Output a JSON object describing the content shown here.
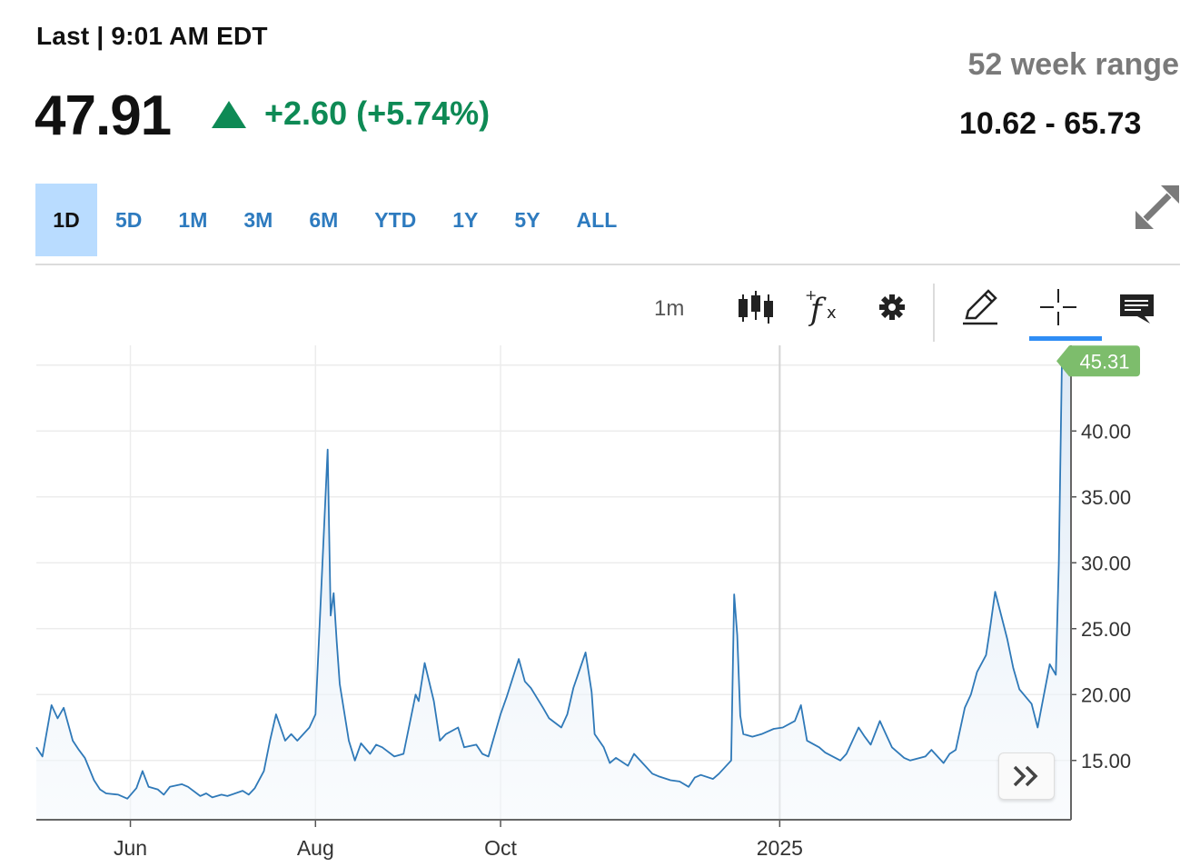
{
  "quote": {
    "last_label": "Last | 9:01 AM EDT",
    "price": "47.91",
    "change": "+2.60 (+5.74%)",
    "change_color": "#0e8a55",
    "range_label": "52 week range",
    "range_value": "10.62 - 65.73"
  },
  "tabs": [
    "1D",
    "5D",
    "1M",
    "3M",
    "6M",
    "YTD",
    "1Y",
    "5Y",
    "ALL"
  ],
  "active_tab": "1D",
  "toolbar": {
    "interval": "1m",
    "icons": [
      "candlestick-icon",
      "function-icon",
      "settings-gear-icon",
      "pencil-draw-icon",
      "crosshair-icon",
      "comment-icon"
    ],
    "active_tool": "crosshair-icon"
  },
  "colors": {
    "line": "#2f79b8",
    "fill": "#dbe8f5",
    "last_price_badge": "#7dbd6c",
    "accent": "#2f8df5"
  },
  "chart_data": {
    "type": "area",
    "x_tick_labels": [
      "Jun",
      "Aug",
      "Oct",
      "2025"
    ],
    "y_tick_labels": [
      "15.00",
      "20.00",
      "25.00",
      "30.00",
      "35.00",
      "40.00"
    ],
    "y_ticks": [
      15,
      20,
      25,
      30,
      35,
      40
    ],
    "ylim": [
      10.5,
      46.5
    ],
    "last_value": 45.31,
    "last_label": "45.31",
    "grid": true,
    "x": [
      "2024-05-01",
      "2024-05-03",
      "2024-05-06",
      "2024-05-08",
      "2024-05-10",
      "2024-05-13",
      "2024-05-15",
      "2024-05-17",
      "2024-05-20",
      "2024-05-22",
      "2024-05-24",
      "2024-05-28",
      "2024-05-31",
      "2024-06-03",
      "2024-06-05",
      "2024-06-07",
      "2024-06-10",
      "2024-06-12",
      "2024-06-14",
      "2024-06-18",
      "2024-06-20",
      "2024-06-24",
      "2024-06-26",
      "2024-06-28",
      "2024-07-01",
      "2024-07-03",
      "2024-07-08",
      "2024-07-10",
      "2024-07-12",
      "2024-07-15",
      "2024-07-17",
      "2024-07-19",
      "2024-07-22",
      "2024-07-24",
      "2024-07-26",
      "2024-07-30",
      "2024-08-01",
      "2024-08-02",
      "2024-08-05",
      "2024-08-06",
      "2024-08-07",
      "2024-08-08",
      "2024-08-09",
      "2024-08-12",
      "2024-08-14",
      "2024-08-16",
      "2024-08-19",
      "2024-08-21",
      "2024-08-23",
      "2024-08-27",
      "2024-08-30",
      "2024-09-03",
      "2024-09-04",
      "2024-09-06",
      "2024-09-09",
      "2024-09-11",
      "2024-09-13",
      "2024-09-17",
      "2024-09-19",
      "2024-09-23",
      "2024-09-25",
      "2024-09-27",
      "2024-10-01",
      "2024-10-03",
      "2024-10-07",
      "2024-10-09",
      "2024-10-11",
      "2024-10-15",
      "2024-10-17",
      "2024-10-21",
      "2024-10-23",
      "2024-10-25",
      "2024-10-29",
      "2024-10-31",
      "2024-11-01",
      "2024-11-04",
      "2024-11-06",
      "2024-11-08",
      "2024-11-12",
      "2024-11-14",
      "2024-11-18",
      "2024-11-20",
      "2024-11-22",
      "2024-11-26",
      "2024-11-29",
      "2024-12-02",
      "2024-12-04",
      "2024-12-06",
      "2024-12-10",
      "2024-12-12",
      "2024-12-16",
      "2024-12-17",
      "2024-12-18",
      "2024-12-19",
      "2024-12-20",
      "2024-12-23",
      "2024-12-26",
      "2024-12-30",
      "2025-01-02",
      "2025-01-06",
      "2025-01-08",
      "2025-01-10",
      "2025-01-14",
      "2025-01-16",
      "2025-01-21",
      "2025-01-23",
      "2025-01-27",
      "2025-01-29",
      "2025-01-31",
      "2025-02-03",
      "2025-02-05",
      "2025-02-07",
      "2025-02-11",
      "2025-02-13",
      "2025-02-18",
      "2025-02-20",
      "2025-02-24",
      "2025-02-26",
      "2025-02-28",
      "2025-03-03",
      "2025-03-05",
      "2025-03-07",
      "2025-03-10",
      "2025-03-11",
      "2025-03-13",
      "2025-03-17",
      "2025-03-19",
      "2025-03-21",
      "2025-03-25",
      "2025-03-27",
      "2025-03-31",
      "2025-04-02",
      "2025-04-03",
      "2025-04-04",
      "2025-04-07"
    ],
    "series": [
      {
        "values": [
          16,
          15.3,
          19.2,
          18.2,
          19.0,
          16.5,
          15.8,
          15.2,
          13.5,
          12.8,
          12.5,
          12.4,
          12.1,
          12.9,
          14.2,
          13.0,
          12.8,
          12.4,
          13.0,
          13.2,
          13.0,
          12.3,
          12.5,
          12.2,
          12.4,
          12.3,
          12.7,
          12.4,
          12.9,
          14.2,
          16.5,
          18.5,
          16.5,
          17.0,
          16.5,
          17.5,
          18.5,
          23.4,
          38.6,
          26.0,
          27.7,
          24.0,
          20.8,
          16.5,
          15.0,
          16.3,
          15.5,
          16.2,
          16.0,
          15.3,
          15.5,
          20.0,
          19.5,
          22.4,
          19.5,
          16.5,
          17.0,
          17.5,
          16.0,
          16.2,
          15.5,
          15.3,
          18.5,
          19.8,
          22.7,
          21.0,
          20.5,
          19.0,
          18.2,
          17.5,
          18.5,
          20.5,
          23.2,
          20.2,
          17.0,
          16.0,
          14.8,
          15.2,
          14.6,
          15.5,
          14.5,
          14.0,
          13.8,
          13.5,
          13.4,
          13.0,
          13.7,
          13.9,
          13.6,
          14.0,
          15.0,
          27.6,
          24.5,
          18.4,
          17.0,
          16.8,
          17.0,
          17.4,
          17.5,
          18.0,
          19.2,
          16.5,
          16.0,
          15.6,
          15.0,
          15.5,
          17.5,
          16.8,
          16.2,
          18.0,
          17.0,
          16.0,
          15.2,
          15.0,
          15.3,
          15.8,
          14.8,
          15.5,
          15.8,
          19.0,
          20.0,
          21.7,
          23.0,
          24.5,
          27.8,
          24.2,
          22.0,
          20.4,
          19.3,
          17.5,
          22.3,
          21.5,
          30.0,
          45.3,
          45.31
        ]
      }
    ]
  }
}
